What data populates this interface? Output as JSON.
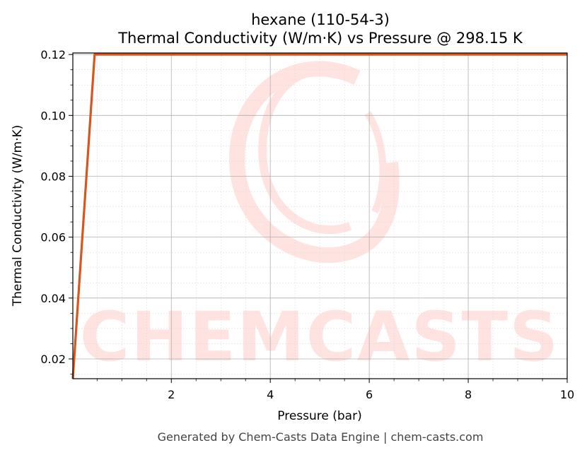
{
  "chart_data": {
    "type": "line",
    "title": "hexane (110-54-3)",
    "subtitle": "Thermal Conductivity (W/m·K) vs Pressure @ 298.15 K",
    "xlabel": "Pressure (bar)",
    "ylabel": "Thermal Conductivity (W/m·K)",
    "xlim": [
      0.01,
      10
    ],
    "ylim": [
      0.0135,
      0.1205
    ],
    "x_ticks": [
      2,
      4,
      6,
      8,
      10
    ],
    "x_tick_labels": [
      "2",
      "4",
      "6",
      "8",
      "10"
    ],
    "y_ticks": [
      0.02,
      0.04,
      0.06,
      0.08,
      0.1,
      0.12
    ],
    "y_tick_labels": [
      "0.02",
      "0.04",
      "0.06",
      "0.08",
      "0.10",
      "0.12"
    ],
    "grid": true,
    "series": [
      {
        "color": "#d9541e",
        "x": [
          0.01,
          0.45,
          10
        ],
        "y": [
          0.0135,
          0.12,
          0.12
        ]
      }
    ]
  },
  "watermark": {
    "text": "CHEMCASTS"
  },
  "footer": {
    "text": "Generated by Chem-Casts Data Engine | chem-casts.com"
  }
}
